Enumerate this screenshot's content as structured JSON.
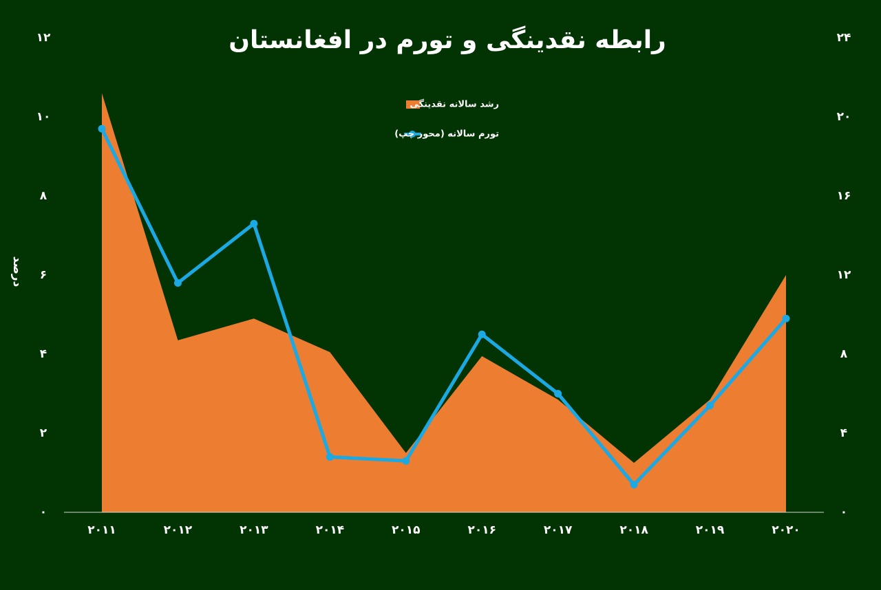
{
  "chart_data": {
    "type": "combo",
    "title": "رابطه نقدینگی و تورم در افغانستان",
    "ylabel": "درصد",
    "categories": [
      "۲۰۱۱",
      "۲۰۱۲",
      "۲۰۱۳",
      "۲۰۱۴",
      "۲۰۱۵",
      "۲۰۱۶",
      "۲۰۱۷",
      "۲۰۱۸",
      "۲۰۱۹",
      "۲۰۲۰"
    ],
    "series": [
      {
        "name": "رشد سالانه نقدینگی",
        "type": "area",
        "axis": "y2",
        "color": "#ed7d31",
        "values": [
          21.2,
          8.7,
          9.8,
          8.1,
          3.0,
          7.9,
          5.7,
          2.5,
          5.7,
          12.0
        ]
      },
      {
        "name": "تورم سالانه (محور چپ)",
        "type": "line",
        "axis": "y",
        "color": "#1ba8e3",
        "values": [
          9.7,
          5.8,
          7.3,
          1.4,
          1.3,
          4.5,
          3.0,
          0.7,
          2.7,
          4.9
        ]
      }
    ],
    "ylim": [
      0,
      12
    ],
    "yticks": [
      {
        "value": 0,
        "label": "۰"
      },
      {
        "value": 2,
        "label": "۲"
      },
      {
        "value": 4,
        "label": "۴"
      },
      {
        "value": 6,
        "label": "۶"
      },
      {
        "value": 8,
        "label": "۸"
      },
      {
        "value": 10,
        "label": "۱۰"
      },
      {
        "value": 12,
        "label": "۱۲"
      }
    ],
    "y2lim": [
      0,
      24
    ],
    "y2ticks": [
      {
        "value": 0,
        "label": "۰"
      },
      {
        "value": 4,
        "label": "۴"
      },
      {
        "value": 8,
        "label": "۸"
      },
      {
        "value": 12,
        "label": "۱۲"
      },
      {
        "value": 16,
        "label": "۱۶"
      },
      {
        "value": 20,
        "label": "۲۰"
      },
      {
        "value": 24,
        "label": "۲۴"
      }
    ],
    "grid": false
  }
}
